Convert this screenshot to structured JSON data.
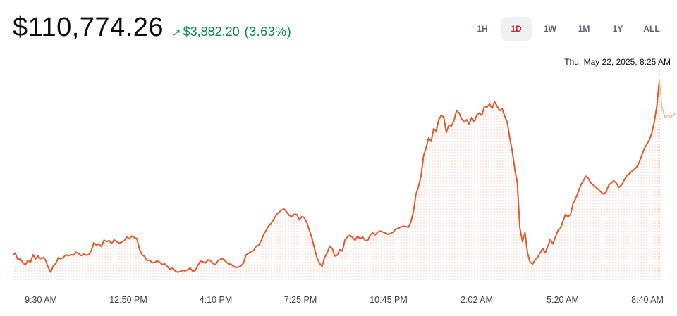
{
  "header": {
    "price": "$110,774.26",
    "change_arrow": "↗",
    "change_amount": "$3,882.20",
    "change_percent": "(3.63%)",
    "change_color": "#098551"
  },
  "ranges": [
    {
      "label": "1H",
      "active": false
    },
    {
      "label": "1D",
      "active": true
    },
    {
      "label": "1W",
      "active": false
    },
    {
      "label": "1M",
      "active": false
    },
    {
      "label": "1Y",
      "active": false
    },
    {
      "label": "ALL",
      "active": false
    }
  ],
  "tooltip": {
    "time": "Thu, May 22, 2025, 8:25 AM"
  },
  "chart_data": {
    "type": "line",
    "line_color": "#e05a2b",
    "fill": "dotted",
    "x_tick_labels": [
      "9:30 AM",
      "12:50 PM",
      "4:10 PM",
      "7:25 PM",
      "10:45 PM",
      "2:02 AM",
      "5:20 AM",
      "8:40 AM"
    ],
    "series": [
      {
        "values": [
          106892,
          106951,
          106803,
          106820,
          106732,
          106684,
          106789,
          106742,
          106908,
          106814,
          106880,
          106823,
          106847,
          106786,
          106632,
          106523,
          106664,
          106718,
          106842,
          106820,
          106850,
          106910,
          106887,
          106909,
          106900,
          106963,
          106940,
          106889,
          106928,
          106899,
          106914,
          106998,
          107178,
          107120,
          107152,
          107086,
          107232,
          107202,
          107225,
          107158,
          107240,
          107205,
          107166,
          107193,
          107222,
          107302,
          107262,
          107324,
          107289,
          107265,
          107030,
          106908,
          106870,
          106781,
          106791,
          106734,
          106736,
          106775,
          106738,
          106693,
          106705,
          106651,
          106585,
          106616,
          106555,
          106523,
          106538,
          106560,
          106551,
          106573,
          106618,
          106544,
          106562,
          106670,
          106769,
          106752,
          106725,
          106799,
          106772,
          106712,
          106691,
          106784,
          106809,
          106822,
          106758,
          106713,
          106697,
          106658,
          106627,
          106636,
          106664,
          106725,
          106905,
          106942,
          106980,
          106998,
          107099,
          107120,
          107224,
          107362,
          107454,
          107556,
          107610,
          107700,
          107800,
          107848,
          107900,
          107920,
          107860,
          107782,
          107750,
          107806,
          107802,
          107690,
          107754,
          107730,
          107625,
          107450,
          107280,
          107050,
          106840,
          106720,
          106650,
          106850,
          106950,
          107100,
          107050,
          106880,
          106900,
          107020,
          106990,
          107240,
          107300,
          107340,
          107290,
          107230,
          107320,
          107260,
          107302,
          107220,
          107230,
          107344,
          107393,
          107350,
          107412,
          107433,
          107410,
          107392,
          107355,
          107380,
          107408,
          107478,
          107489,
          107520,
          107542,
          107534,
          107518,
          107636,
          107860,
          108250,
          108420,
          108650,
          109100,
          109280,
          109500,
          109420,
          109700,
          109650,
          109900,
          110000,
          109950,
          109620,
          109780,
          109760,
          109880,
          110100,
          110050,
          109920,
          109850,
          109900,
          109800,
          109950,
          109850,
          110000,
          110050,
          110000,
          110200,
          110180,
          110250,
          110150,
          110300,
          110200,
          110100,
          110150,
          109980,
          109850,
          109500,
          109200,
          108800,
          108500,
          107500,
          107200,
          107400,
          106950,
          106750,
          106700,
          106800,
          106850,
          106950,
          107050,
          106950,
          107100,
          107250,
          107150,
          107300,
          107450,
          107500,
          107650,
          107800,
          107750,
          107800,
          108050,
          108150,
          108300,
          108450,
          108550,
          108650,
          108600,
          108500,
          108450,
          108400,
          108350,
          108300,
          108250,
          108300,
          108450,
          108500,
          108550,
          108500,
          108400,
          108450,
          108550,
          108650,
          108700,
          108750,
          108800,
          108850,
          108950,
          109100,
          109250,
          109350,
          109450,
          109600,
          109850,
          110200,
          110774
        ]
      }
    ]
  }
}
